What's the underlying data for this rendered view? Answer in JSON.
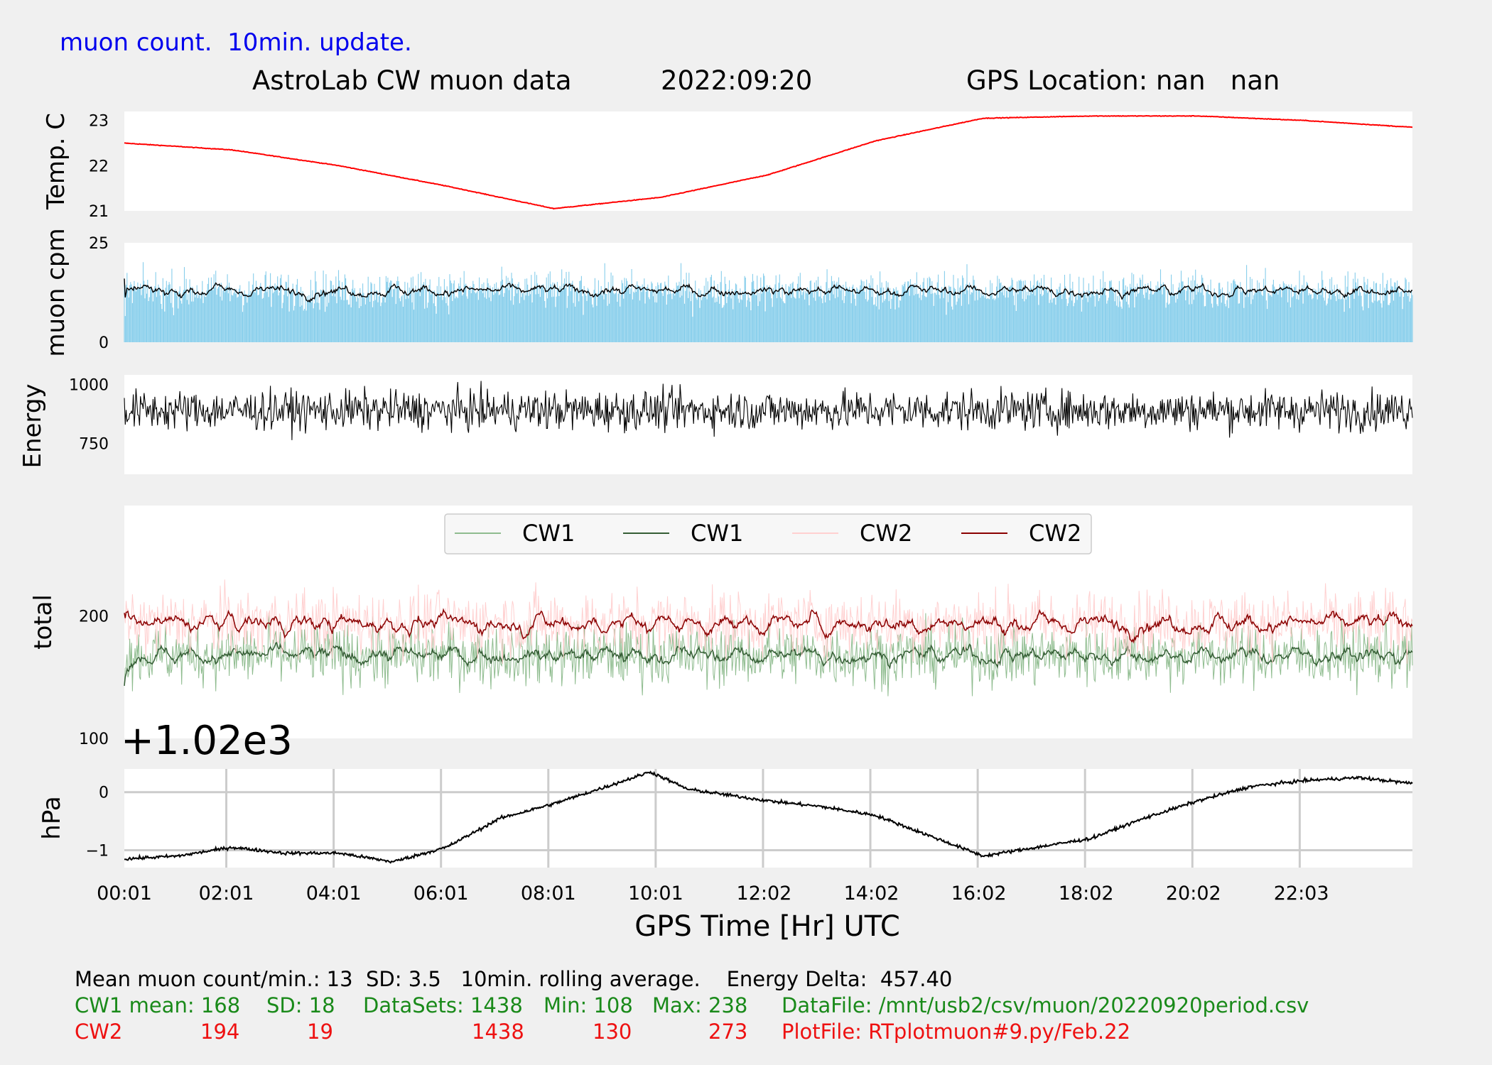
{
  "header": {
    "note": "muon count.  10min. update.",
    "title": "AstroLab CW muon data",
    "date": "2022:09:20",
    "location": "GPS Location: nan   nan"
  },
  "chart_data": [
    {
      "type": "line",
      "name": "temperature",
      "ylabel": "Temp. C",
      "ylim": [
        21,
        23.2
      ],
      "yticks": [
        "21",
        "22",
        "23"
      ],
      "color": "#ff0000",
      "x": [
        0,
        2,
        4,
        6,
        8,
        10,
        12,
        14,
        16,
        18,
        20,
        22,
        24
      ],
      "y": [
        22.5,
        22.35,
        22.0,
        21.55,
        21.05,
        21.3,
        21.8,
        22.55,
        23.05,
        23.1,
        23.1,
        23.0,
        22.85
      ]
    },
    {
      "type": "bar",
      "name": "muon-cpm",
      "ylabel": "muon cpm",
      "ylim": [
        0,
        25
      ],
      "yticks": [
        "0",
        "25"
      ],
      "bar_color": "#87ceeb",
      "mean_per_min": 13,
      "sd": 3.5,
      "rolling_avg_color": "#000000"
    },
    {
      "type": "line",
      "name": "energy",
      "ylabel": "Energy",
      "ylim": [
        620,
        1040
      ],
      "yticks": [
        "750",
        "1000"
      ],
      "color": "#000000",
      "mean": 890,
      "spread": 60
    },
    {
      "type": "line",
      "name": "total",
      "ylabel": "total",
      "ylim": [
        100,
        290
      ],
      "yticks": [
        "100",
        "200"
      ],
      "legend": [
        "CW1",
        "CW1",
        "CW2",
        "CW2"
      ],
      "legend_colors": [
        "#8fbc8f",
        "#355e35",
        "#ffd0d0",
        "#8b0000"
      ],
      "series": [
        {
          "name": "CW1",
          "mean": 168,
          "sd": 18,
          "min": 108,
          "max": 238
        },
        {
          "name": "CW2",
          "mean": 194,
          "sd": 19,
          "min": 130,
          "max": 273
        }
      ]
    },
    {
      "type": "line",
      "name": "pressure",
      "ylabel": "hPa",
      "offset_label": "+1.02e3",
      "ylim": [
        -1.3,
        0.4
      ],
      "yticks": [
        "−1",
        "0"
      ],
      "grid": true,
      "color": "#000000",
      "x": [
        0,
        1,
        2,
        3,
        4,
        5,
        6,
        7,
        8,
        9,
        9.8,
        10.5,
        12,
        13,
        14,
        15,
        16,
        17,
        18,
        19,
        20,
        21,
        22,
        23,
        24
      ],
      "y": [
        -1.15,
        -1.1,
        -0.95,
        -1.05,
        -1.05,
        -1.2,
        -0.95,
        -0.45,
        -0.2,
        0.1,
        0.35,
        0.05,
        -0.15,
        -0.25,
        -0.4,
        -0.75,
        -1.1,
        -0.95,
        -0.8,
        -0.45,
        -0.15,
        0.1,
        0.2,
        0.25,
        0.15
      ]
    }
  ],
  "x_axis": {
    "ticks": [
      "00:01",
      "02:01",
      "04:01",
      "06:01",
      "08:01",
      "10:01",
      "12:02",
      "14:02",
      "16:02",
      "18:02",
      "20:02",
      "22:03"
    ],
    "label": "GPS Time  [Hr] UTC"
  },
  "stats": {
    "line1": "Mean muon count/min.: 13  SD: 3.5   10min. rolling average.    Energy Delta:  457.40",
    "cw1": {
      "name": "CW1 mean: 168",
      "sd": "SD: 18",
      "datasets": "DataSets: 1438",
      "min": "Min: 108",
      "max": "Max: 238",
      "file": "DataFile: /mnt/usb2/csv/muon/20220920period.csv"
    },
    "cw2": {
      "name": "CW2",
      "mean": "194",
      "sd": "19",
      "datasets": "1438",
      "min": "130",
      "max": "273",
      "file": "PlotFile: RTplotmuon#9.py/Feb.22"
    }
  }
}
